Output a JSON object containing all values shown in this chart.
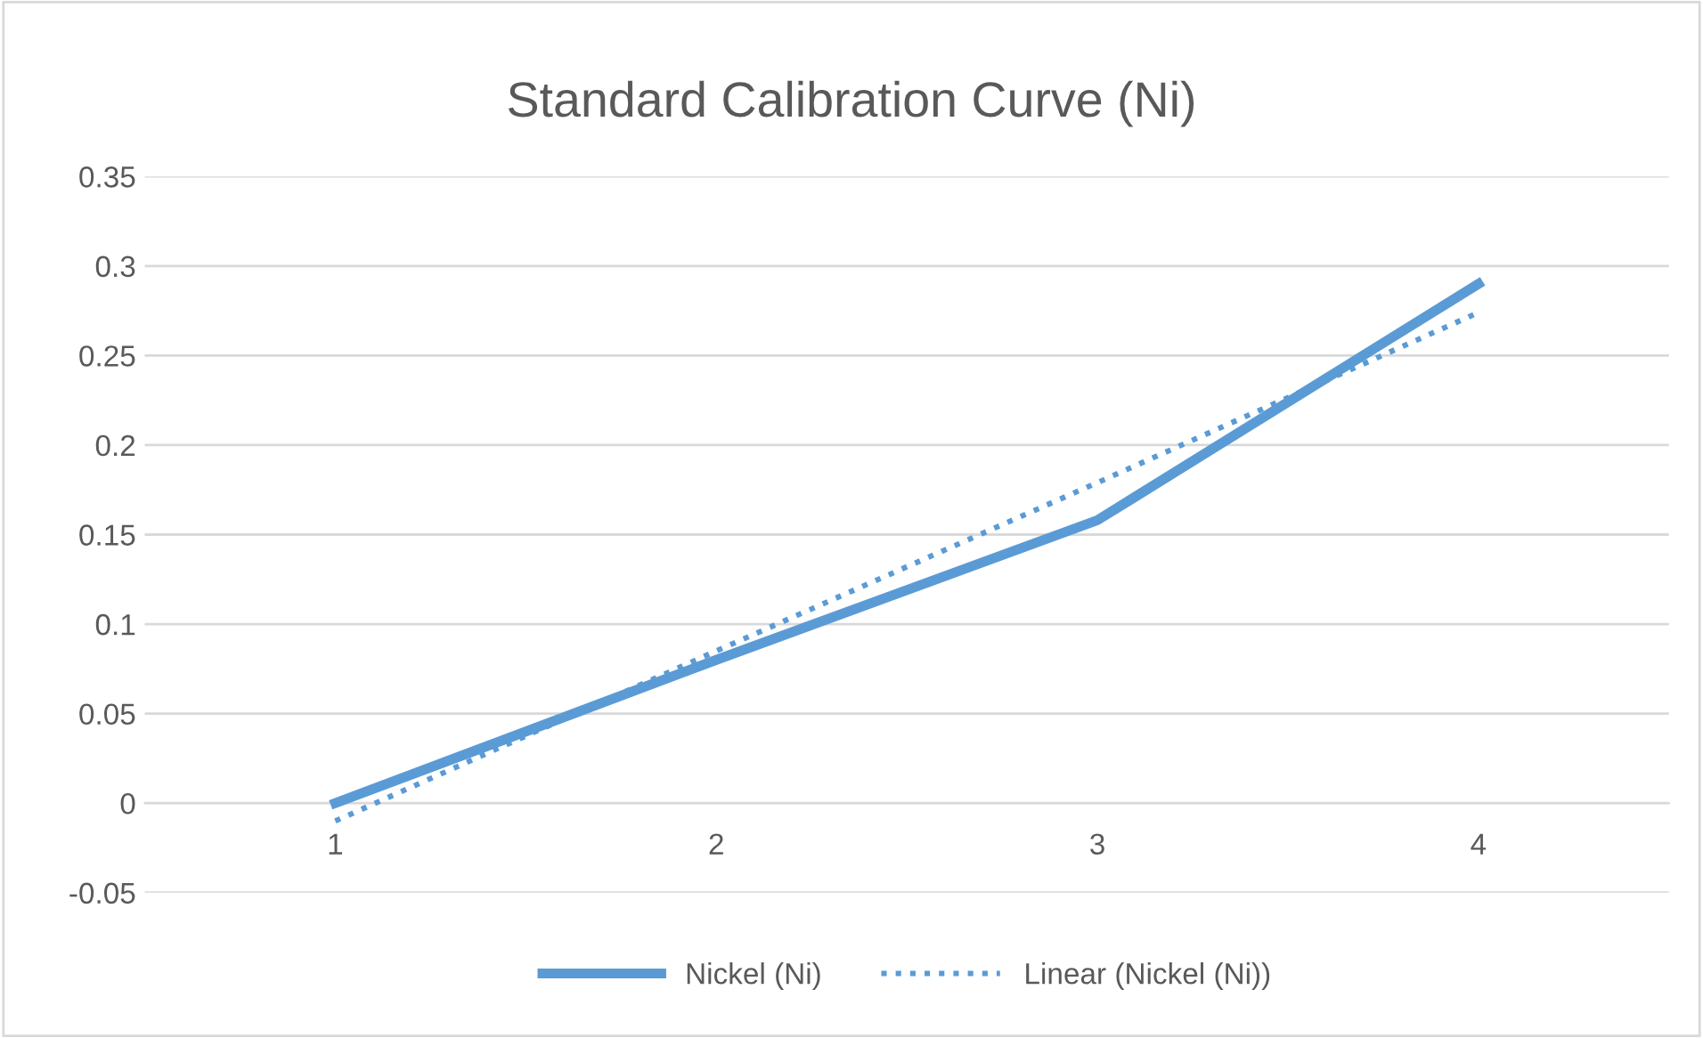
{
  "chart_data": {
    "type": "line",
    "title": "Standard Calibration Curve (Ni)",
    "categories": [
      "1",
      "2",
      "3",
      "4"
    ],
    "series": [
      {
        "name": "Nickel (Ni)",
        "color": "#5b9bd5",
        "values": [
          0,
          0.08,
          0.158,
          0.29
        ],
        "line_style": "solid"
      },
      {
        "name": "Linear (Nickel (Ni))",
        "color": "#5b9bd5",
        "values": [
          -0.01,
          0.085,
          0.179,
          0.274
        ],
        "line_style": "dotted"
      }
    ],
    "ylim": [
      -0.05,
      0.35
    ],
    "yticks": [
      -0.05,
      0,
      0.05,
      0.1,
      0.15,
      0.2,
      0.25,
      0.3,
      0.35
    ],
    "grid": "y",
    "legend": "bottom",
    "marker": "none"
  }
}
